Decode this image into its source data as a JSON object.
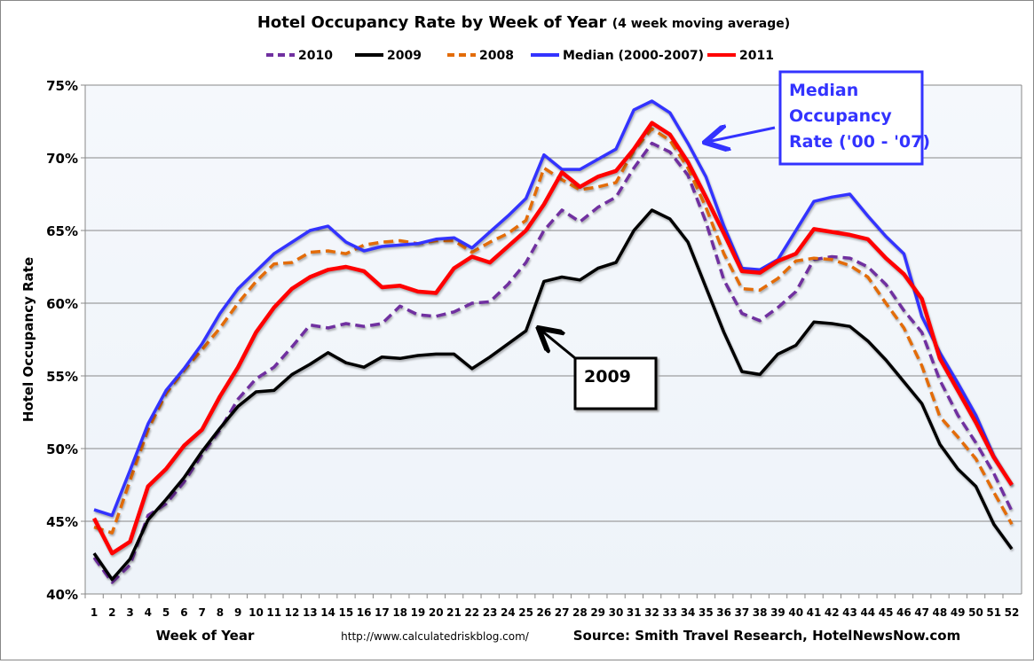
{
  "chart_data": {
    "type": "line",
    "title": "Hotel Occupancy Rate by  Week of Year",
    "subtitle": "(4 week moving average)",
    "xlabel": "Week of Year",
    "ylabel": "Hotel Occupancy Rate",
    "ylim": [
      40,
      75
    ],
    "yticks": [
      "40%",
      "45%",
      "50%",
      "55%",
      "60%",
      "65%",
      "70%",
      "75%"
    ],
    "ytick_values": [
      40,
      45,
      50,
      55,
      60,
      65,
      70,
      75
    ],
    "x": [
      1,
      2,
      3,
      4,
      5,
      6,
      7,
      8,
      9,
      10,
      11,
      12,
      13,
      14,
      15,
      16,
      17,
      18,
      19,
      20,
      21,
      22,
      23,
      24,
      25,
      26,
      27,
      28,
      29,
      30,
      31,
      32,
      33,
      34,
      35,
      36,
      37,
      38,
      39,
      40,
      41,
      42,
      43,
      44,
      45,
      46,
      47,
      48,
      49,
      50,
      51,
      52
    ],
    "grid": true,
    "legend_position": "top",
    "source": "Source: Smith Travel Research, HotelNewsNow.com",
    "url": "http://www.calculatedriskblog.com/",
    "annotations": [
      {
        "text_lines": [
          "Median",
          "Occupancy",
          "Rate ('00 - '07)"
        ],
        "color": "#3333ff"
      },
      {
        "text_lines": [
          "2009"
        ],
        "color": "#000000"
      }
    ],
    "series": [
      {
        "name": "2010",
        "color": "#7030a0",
        "dashed": true,
        "values": [
          42.5,
          40.8,
          42.0,
          45.4,
          46.2,
          47.7,
          49.6,
          51.3,
          53.4,
          54.8,
          55.6,
          57.0,
          58.5,
          58.3,
          58.6,
          58.4,
          58.6,
          59.8,
          59.2,
          59.1,
          59.4,
          60.0,
          60.1,
          61.3,
          62.8,
          65.0,
          66.4,
          65.6,
          66.6,
          67.3,
          69.3,
          71.0,
          70.4,
          68.8,
          65.6,
          61.6,
          59.3,
          58.8,
          59.7,
          60.8,
          63.0,
          63.2,
          63.1,
          62.5,
          61.3,
          59.5,
          58.0,
          54.7,
          52.3,
          50.4,
          48.3,
          45.7
        ]
      },
      {
        "name": "2009",
        "color": "#000000",
        "dashed": false,
        "values": [
          42.8,
          41.0,
          42.4,
          45.1,
          46.5,
          48.0,
          49.8,
          51.4,
          52.9,
          53.9,
          54.0,
          55.1,
          55.8,
          56.6,
          55.9,
          55.6,
          56.3,
          56.2,
          56.4,
          56.5,
          56.5,
          55.5,
          56.3,
          57.2,
          58.1,
          61.5,
          61.8,
          61.6,
          62.4,
          62.8,
          65.0,
          66.4,
          65.8,
          64.2,
          61.1,
          58.0,
          55.3,
          55.1,
          56.5,
          57.1,
          58.7,
          58.6,
          58.4,
          57.4,
          56.1,
          54.6,
          53.1,
          50.3,
          48.6,
          47.4,
          44.8,
          43.1
        ]
      },
      {
        "name": "2008",
        "color": "#e36c09",
        "dashed": true,
        "values": [
          44.6,
          44.2,
          47.8,
          51.3,
          53.8,
          55.4,
          56.8,
          58.3,
          60.0,
          61.5,
          62.7,
          62.8,
          63.5,
          63.6,
          63.4,
          64.0,
          64.2,
          64.3,
          64.1,
          64.3,
          64.3,
          63.5,
          64.2,
          64.8,
          65.7,
          69.3,
          68.5,
          67.8,
          68.0,
          68.3,
          70.5,
          72.0,
          71.2,
          69.3,
          66.6,
          63.4,
          61.0,
          60.9,
          61.7,
          62.9,
          63.1,
          63.0,
          62.6,
          61.8,
          60.0,
          58.3,
          55.7,
          52.2,
          50.8,
          49.3,
          47.0,
          44.8
        ]
      },
      {
        "name": "Median (2000-2007)",
        "color": "#3333ff",
        "dashed": false,
        "values": [
          45.8,
          45.4,
          48.5,
          51.7,
          54.0,
          55.5,
          57.2,
          59.3,
          61.0,
          62.2,
          63.4,
          64.2,
          65.0,
          65.3,
          64.2,
          63.6,
          63.9,
          64.0,
          64.1,
          64.4,
          64.5,
          63.8,
          64.9,
          66.0,
          67.2,
          70.2,
          69.2,
          69.2,
          69.9,
          70.6,
          73.3,
          73.9,
          73.1,
          71.0,
          68.7,
          65.3,
          62.4,
          62.3,
          63.0,
          65.0,
          67.0,
          67.3,
          67.5,
          66.0,
          64.6,
          63.4,
          59.1,
          56.6,
          54.5,
          52.3,
          49.5,
          47.5
        ]
      },
      {
        "name": "2011",
        "color": "#ff0000",
        "dashed": false,
        "values": [
          45.2,
          42.8,
          43.6,
          47.4,
          48.6,
          50.2,
          51.3,
          53.6,
          55.6,
          58.0,
          59.7,
          61.0,
          61.8,
          62.3,
          62.5,
          62.2,
          61.1,
          61.2,
          60.8,
          60.7,
          62.4,
          63.2,
          62.8,
          63.9,
          65.0,
          66.8,
          69.0,
          68.0,
          68.7,
          69.1,
          70.6,
          72.4,
          71.6,
          69.7,
          67.3,
          64.8,
          62.2,
          62.1,
          62.9,
          63.4,
          65.1,
          64.9,
          64.7,
          64.4,
          63.1,
          62.0,
          60.3,
          56.2,
          54.0,
          51.8,
          49.4,
          47.5
        ]
      }
    ]
  }
}
